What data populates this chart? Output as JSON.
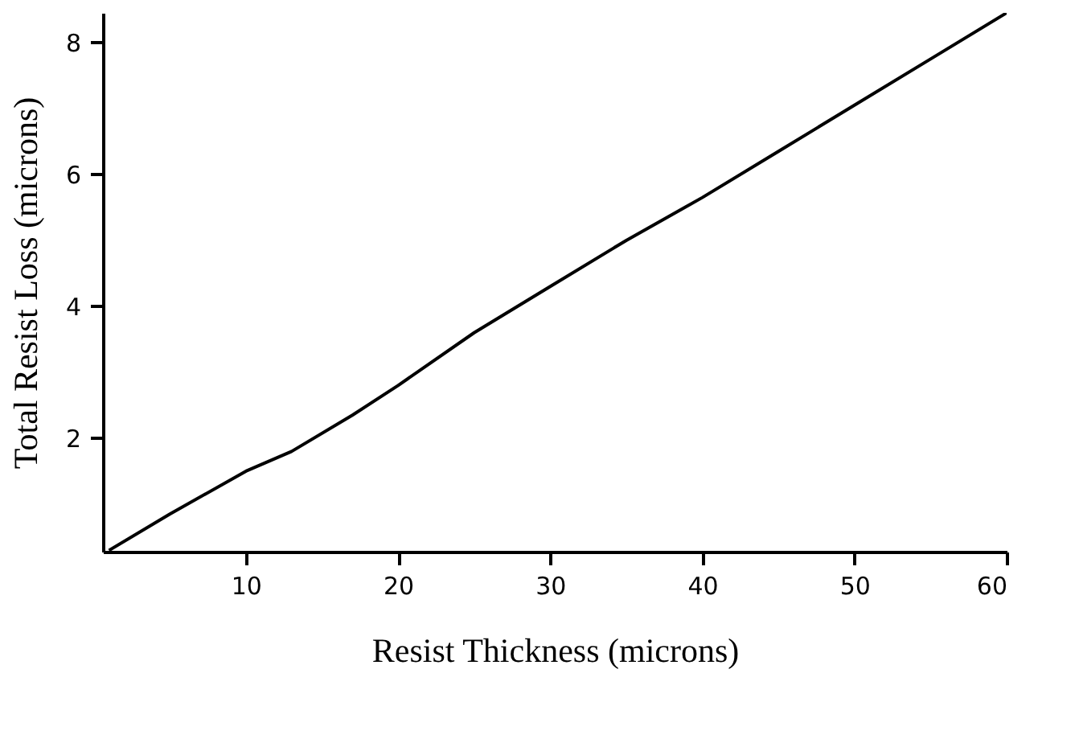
{
  "chart_data": {
    "type": "line",
    "xlabel": "Resist Thickness (microns)",
    "ylabel": "Total Resist Loss (microns)",
    "xlim": [
      0.6,
      60
    ],
    "ylim": [
      0.28,
      8.45
    ],
    "xticks": [
      10,
      20,
      30,
      40,
      50,
      60
    ],
    "yticks": [
      2,
      4,
      6,
      8
    ],
    "grid": false,
    "legend": false,
    "x": [
      1,
      5,
      10,
      13,
      17,
      20,
      25,
      30,
      35,
      40,
      45,
      50,
      55,
      60
    ],
    "series": [
      {
        "color": "#000000",
        "values": [
          0.3,
          0.85,
          1.5,
          1.8,
          2.35,
          2.8,
          3.6,
          4.3,
          5.0,
          5.65,
          6.35,
          7.05,
          7.75,
          8.45
        ]
      }
    ]
  }
}
